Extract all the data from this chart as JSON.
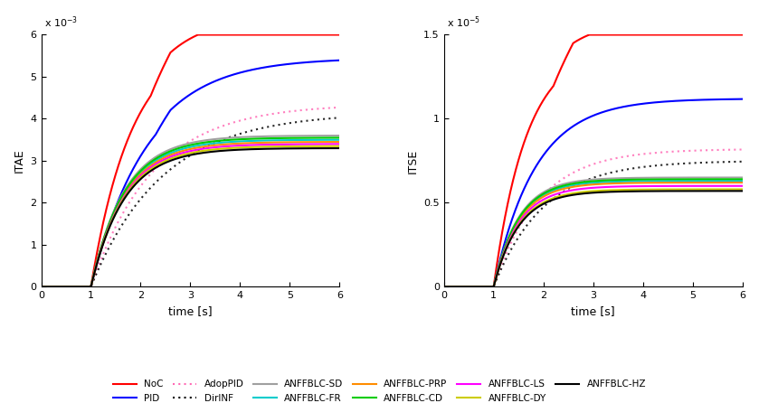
{
  "xlim": [
    0,
    6
  ],
  "itae_ylim": [
    0,
    0.006
  ],
  "itse_ylim": [
    0,
    1.5e-05
  ],
  "xlabel": "time [s]",
  "ylabel_left": "ITAE",
  "ylabel_right": "ITSE",
  "itae_yticks": [
    0,
    0.001,
    0.002,
    0.003,
    0.004,
    0.005,
    0.006
  ],
  "itse_yticks": [
    0,
    5e-06,
    1e-05,
    1.5e-05
  ],
  "itae_ytick_labels": [
    "0",
    "1",
    "2",
    "3",
    "4",
    "5",
    "6"
  ],
  "itse_ytick_labels": [
    "0",
    "0.5",
    "1",
    "1.5"
  ],
  "itae_exp": -3,
  "itse_exp": -5,
  "series": {
    "NoC": {
      "color": "#FF0000",
      "ls": "solid",
      "lw": 1.5,
      "dot": false
    },
    "PID": {
      "color": "#0000FF",
      "ls": "solid",
      "lw": 1.5,
      "dot": false
    },
    "AdopPID": {
      "color": "#FF69B4",
      "ls": "dashed",
      "lw": 1.5,
      "dot": true
    },
    "DirINF": {
      "color": "#000000",
      "ls": "dashed",
      "lw": 1.5,
      "dot": true
    },
    "ANFFBLC-SD": {
      "color": "#A0A0A0",
      "ls": "solid",
      "lw": 1.5,
      "dot": false
    },
    "ANFFBLC-FR": {
      "color": "#00CCCC",
      "ls": "solid",
      "lw": 1.5,
      "dot": false
    },
    "ANFFBLC-PRP": {
      "color": "#FF8C00",
      "ls": "solid",
      "lw": 1.5,
      "dot": false
    },
    "ANFFBLC-CD": {
      "color": "#00CC00",
      "ls": "solid",
      "lw": 1.5,
      "dot": false
    },
    "ANFFBLC-LS": {
      "color": "#FF00FF",
      "ls": "solid",
      "lw": 1.5,
      "dot": false
    },
    "ANFFBLC-DY": {
      "color": "#CCCC00",
      "ls": "solid",
      "lw": 1.5,
      "dot": false
    },
    "ANFFBLC-HZ": {
      "color": "#000000",
      "ls": "solid",
      "lw": 1.5,
      "dot": false
    }
  },
  "legend_row1": [
    "NoC",
    "PID",
    "AdopPID",
    "DirINF",
    "ANFFBLC-SD",
    "ANFFBLC-FR"
  ],
  "legend_row2": [
    "ANFFBLC-PRP",
    "ANFFBLC-CD",
    "ANFFBLC-LS",
    "ANFFBLC-DY",
    "ANFFBLC-HZ"
  ]
}
